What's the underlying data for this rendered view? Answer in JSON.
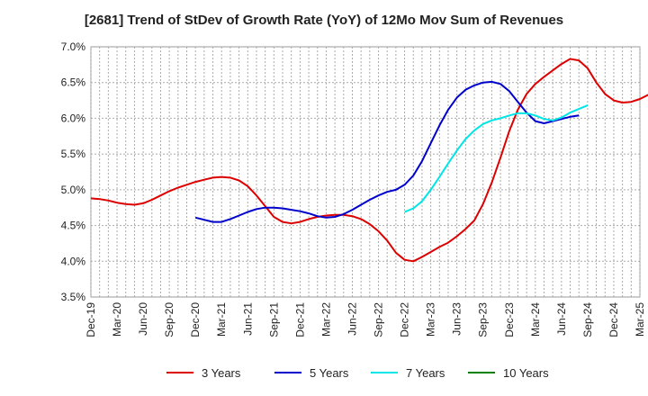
{
  "chart_data": {
    "type": "line",
    "title": "[2681]  Trend of StDev of Growth Rate (YoY) of 12Mo Mov Sum of Revenues",
    "xlabel": "",
    "ylabel": "",
    "ylim": [
      3.5,
      7.0
    ],
    "yticks": [
      "3.5%",
      "4.0%",
      "4.5%",
      "5.0%",
      "5.5%",
      "6.0%",
      "6.5%",
      "7.0%"
    ],
    "ytick_values": [
      3.5,
      4.0,
      4.5,
      5.0,
      5.5,
      6.0,
      6.5,
      7.0
    ],
    "xticks": [
      "Dec-19",
      "Mar-20",
      "Jun-20",
      "Sep-20",
      "Dec-20",
      "Mar-21",
      "Jun-21",
      "Sep-21",
      "Dec-21",
      "Mar-22",
      "Jun-22",
      "Sep-22",
      "Dec-22",
      "Mar-23",
      "Jun-23",
      "Sep-23",
      "Dec-23",
      "Mar-24",
      "Jun-24",
      "Sep-24",
      "Dec-24",
      "Mar-25"
    ],
    "x_unit": "months since Dec-19",
    "xlim": [
      0,
      63
    ],
    "grid": true,
    "legend_position": "bottom",
    "series": [
      {
        "name": "3 Years",
        "color": "#dd0000",
        "points": [
          [
            0,
            4.88
          ],
          [
            1,
            4.87
          ],
          [
            2,
            4.85
          ],
          [
            3,
            4.82
          ],
          [
            4,
            4.8
          ],
          [
            5,
            4.79
          ],
          [
            6,
            4.81
          ],
          [
            7,
            4.86
          ],
          [
            8,
            4.92
          ],
          [
            9,
            4.98
          ],
          [
            10,
            5.03
          ],
          [
            11,
            5.07
          ],
          [
            12,
            5.11
          ],
          [
            13,
            5.14
          ],
          [
            14,
            5.17
          ],
          [
            15,
            5.18
          ],
          [
            16,
            5.17
          ],
          [
            17,
            5.13
          ],
          [
            18,
            5.05
          ],
          [
            19,
            4.92
          ],
          [
            20,
            4.77
          ],
          [
            21,
            4.62
          ],
          [
            22,
            4.55
          ],
          [
            23,
            4.53
          ],
          [
            24,
            4.55
          ],
          [
            25,
            4.59
          ],
          [
            26,
            4.62
          ],
          [
            27,
            4.64
          ],
          [
            28,
            4.65
          ],
          [
            29,
            4.65
          ],
          [
            30,
            4.63
          ],
          [
            31,
            4.59
          ],
          [
            32,
            4.52
          ],
          [
            33,
            4.42
          ],
          [
            34,
            4.29
          ],
          [
            35,
            4.12
          ],
          [
            36,
            4.02
          ],
          [
            37,
            4.0
          ],
          [
            38,
            4.06
          ],
          [
            39,
            4.13
          ],
          [
            40,
            4.2
          ],
          [
            41,
            4.26
          ],
          [
            42,
            4.35
          ],
          [
            43,
            4.45
          ],
          [
            44,
            4.57
          ],
          [
            45,
            4.8
          ],
          [
            46,
            5.1
          ],
          [
            47,
            5.45
          ],
          [
            48,
            5.82
          ],
          [
            49,
            6.12
          ],
          [
            50,
            6.34
          ],
          [
            51,
            6.48
          ],
          [
            52,
            6.58
          ],
          [
            53,
            6.67
          ],
          [
            54,
            6.76
          ],
          [
            55,
            6.83
          ],
          [
            56,
            6.81
          ],
          [
            57,
            6.7
          ],
          [
            58,
            6.5
          ],
          [
            59,
            6.34
          ],
          [
            60,
            6.25
          ],
          [
            61,
            6.22
          ],
          [
            62,
            6.23
          ],
          [
            63,
            6.27
          ],
          [
            64,
            6.33
          ]
        ]
      },
      {
        "name": "5 Years",
        "color": "#0000cc",
        "points": [
          [
            12,
            4.61
          ],
          [
            13,
            4.58
          ],
          [
            14,
            4.55
          ],
          [
            15,
            4.55
          ],
          [
            16,
            4.59
          ],
          [
            17,
            4.64
          ],
          [
            18,
            4.69
          ],
          [
            19,
            4.73
          ],
          [
            20,
            4.75
          ],
          [
            21,
            4.75
          ],
          [
            22,
            4.74
          ],
          [
            23,
            4.72
          ],
          [
            24,
            4.7
          ],
          [
            25,
            4.67
          ],
          [
            26,
            4.63
          ],
          [
            27,
            4.61
          ],
          [
            28,
            4.62
          ],
          [
            29,
            4.66
          ],
          [
            30,
            4.72
          ],
          [
            31,
            4.79
          ],
          [
            32,
            4.86
          ],
          [
            33,
            4.92
          ],
          [
            34,
            4.97
          ],
          [
            35,
            5.0
          ],
          [
            36,
            5.07
          ],
          [
            37,
            5.2
          ],
          [
            38,
            5.4
          ],
          [
            39,
            5.65
          ],
          [
            40,
            5.9
          ],
          [
            41,
            6.12
          ],
          [
            42,
            6.29
          ],
          [
            43,
            6.4
          ],
          [
            44,
            6.46
          ],
          [
            45,
            6.5
          ],
          [
            46,
            6.51
          ],
          [
            47,
            6.48
          ],
          [
            48,
            6.38
          ],
          [
            49,
            6.23
          ],
          [
            50,
            6.08
          ],
          [
            51,
            5.96
          ],
          [
            52,
            5.93
          ],
          [
            53,
            5.96
          ],
          [
            54,
            5.99
          ],
          [
            55,
            6.02
          ],
          [
            56,
            6.04
          ]
        ]
      },
      {
        "name": "7 Years",
        "color": "#00e5e5",
        "points": [
          [
            36,
            4.69
          ],
          [
            37,
            4.74
          ],
          [
            38,
            4.84
          ],
          [
            39,
            5.0
          ],
          [
            40,
            5.18
          ],
          [
            41,
            5.37
          ],
          [
            42,
            5.55
          ],
          [
            43,
            5.71
          ],
          [
            44,
            5.83
          ],
          [
            45,
            5.92
          ],
          [
            46,
            5.97
          ],
          [
            47,
            6.0
          ],
          [
            48,
            6.04
          ],
          [
            49,
            6.07
          ],
          [
            50,
            6.07
          ],
          [
            51,
            6.04
          ],
          [
            52,
            5.99
          ],
          [
            53,
            5.97
          ],
          [
            54,
            6.01
          ],
          [
            55,
            6.08
          ],
          [
            56,
            6.13
          ],
          [
            57,
            6.18
          ]
        ]
      },
      {
        "name": "10 Years",
        "color": "#008000",
        "points": []
      }
    ]
  }
}
